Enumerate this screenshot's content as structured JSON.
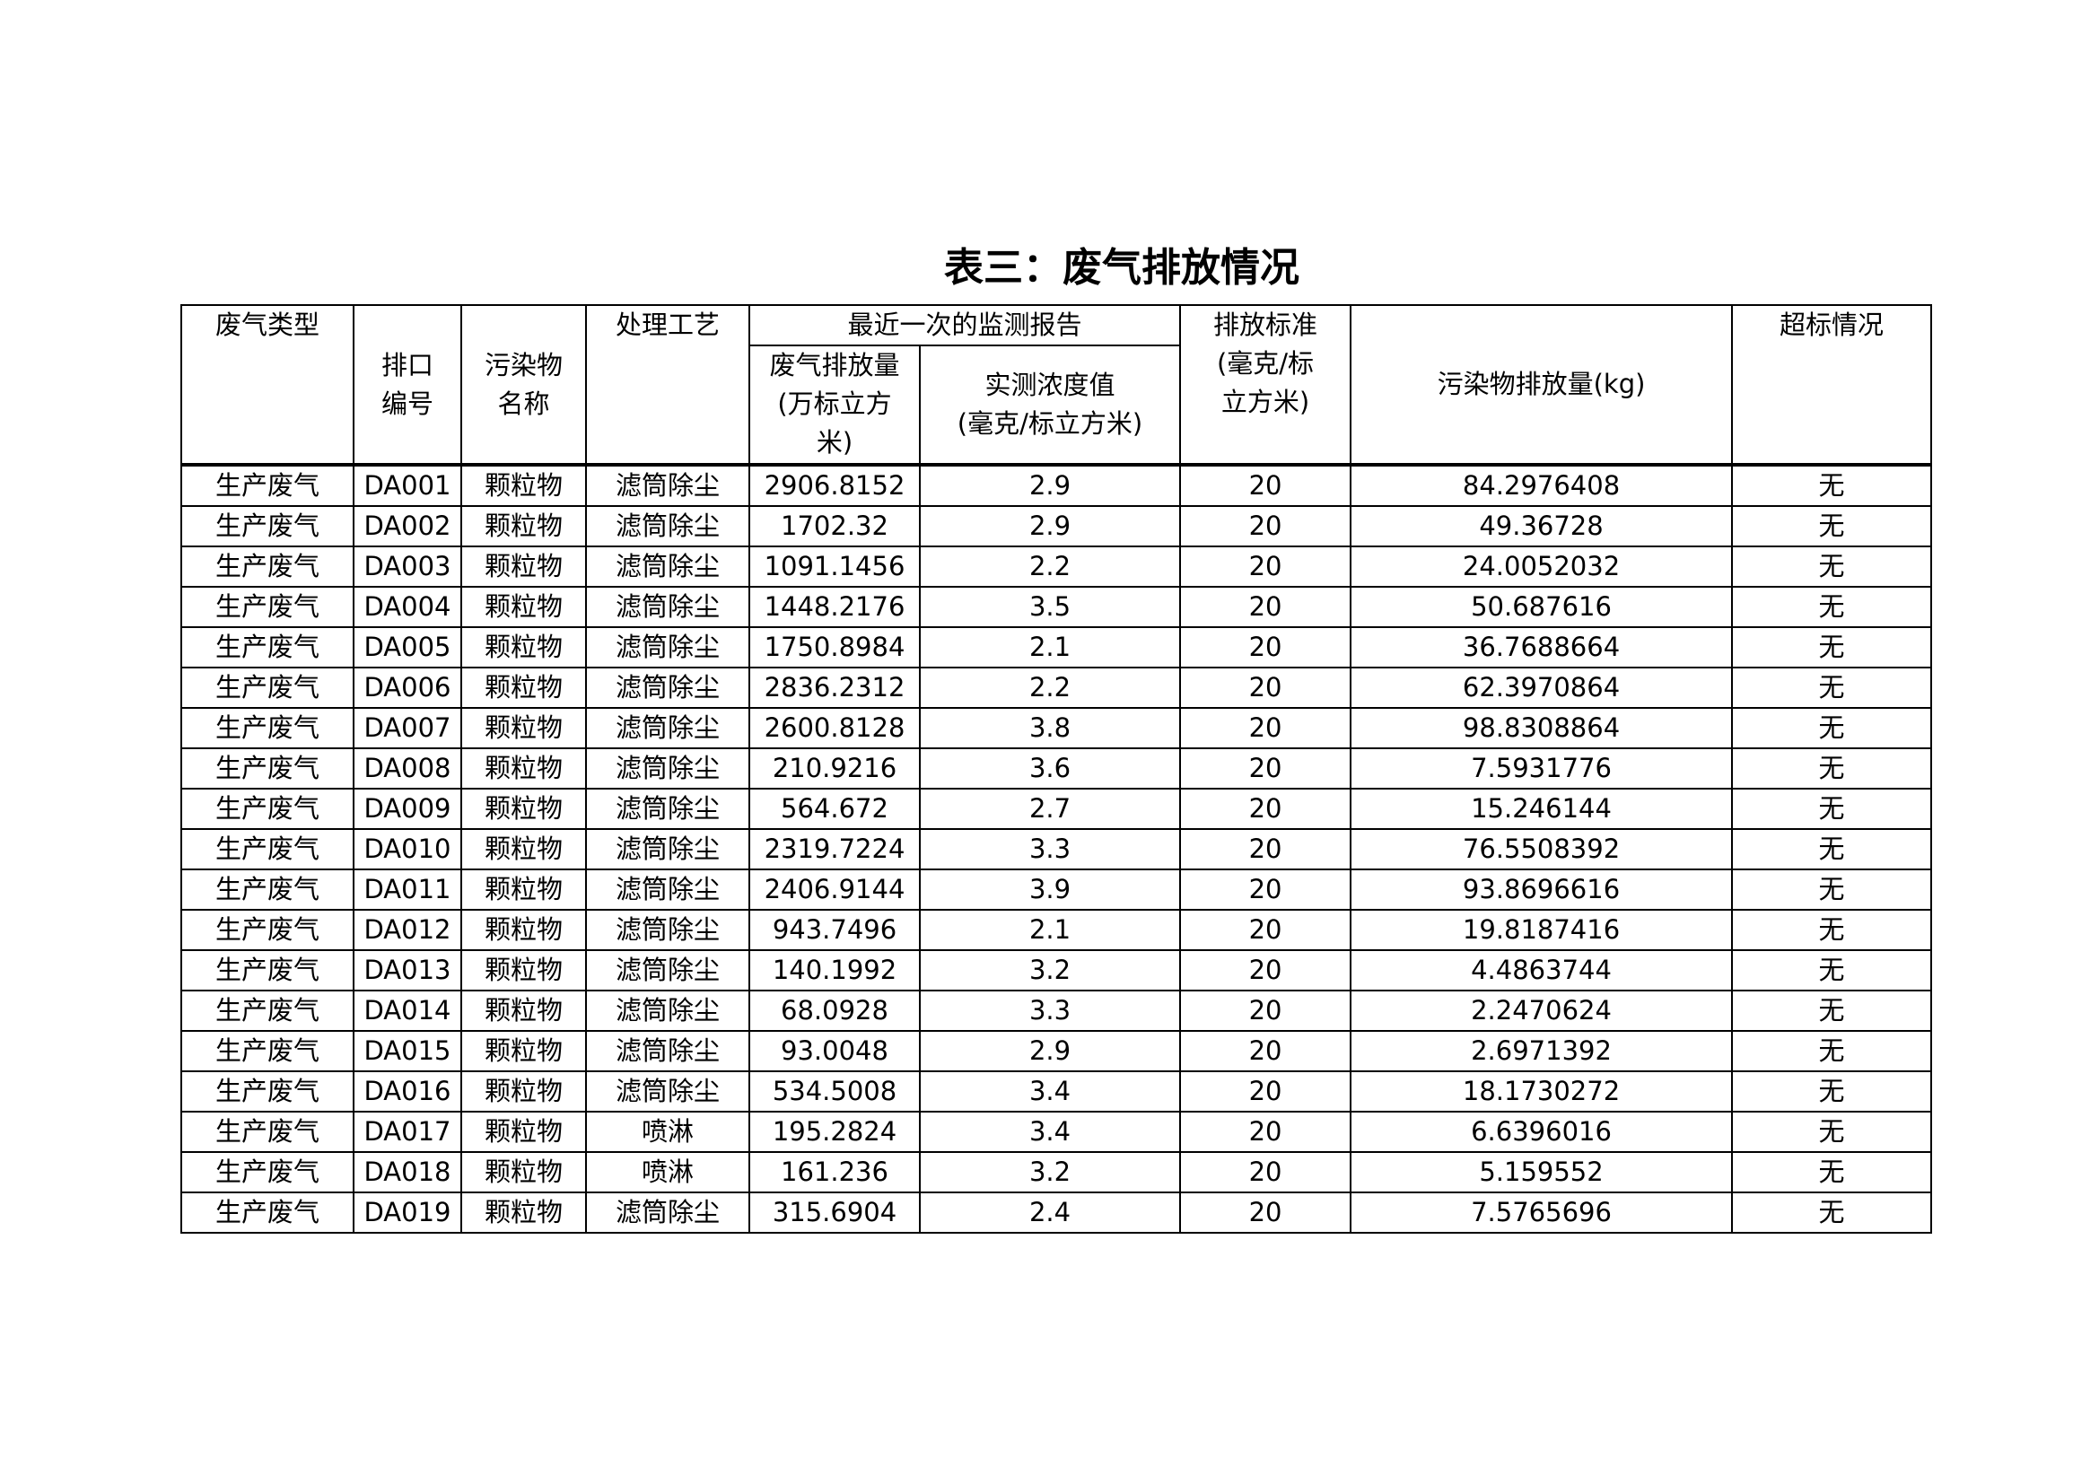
{
  "title": "表三：废气排放情况",
  "table": {
    "headers": {
      "type": "废气类型",
      "outlet_line1": "排口",
      "outlet_line2": "编号",
      "pollutant_line1": "污染物",
      "pollutant_line2": "名称",
      "process": "处理工艺",
      "report_group": "最近一次的监测报告",
      "volume_line1": "废气排放量",
      "volume_line2": "(万标立方",
      "volume_line3": "米)",
      "conc_line1": "实测浓度值",
      "conc_line2": "(毫克/标立方米)",
      "standard_line1": "排放标准",
      "standard_line2": "(毫克/标",
      "standard_line3": "立方米)",
      "emission": "污染物排放量(kg)",
      "exceed": "超标情况"
    },
    "rows": [
      [
        "生产废气",
        "DA001",
        "颗粒物",
        "滤筒除尘",
        "2906.8152",
        "2.9",
        "20",
        "84.2976408",
        "无"
      ],
      [
        "生产废气",
        "DA002",
        "颗粒物",
        "滤筒除尘",
        "1702.32",
        "2.9",
        "20",
        "49.36728",
        "无"
      ],
      [
        "生产废气",
        "DA003",
        "颗粒物",
        "滤筒除尘",
        "1091.1456",
        "2.2",
        "20",
        "24.0052032",
        "无"
      ],
      [
        "生产废气",
        "DA004",
        "颗粒物",
        "滤筒除尘",
        "1448.2176",
        "3.5",
        "20",
        "50.687616",
        "无"
      ],
      [
        "生产废气",
        "DA005",
        "颗粒物",
        "滤筒除尘",
        "1750.8984",
        "2.1",
        "20",
        "36.7688664",
        "无"
      ],
      [
        "生产废气",
        "DA006",
        "颗粒物",
        "滤筒除尘",
        "2836.2312",
        "2.2",
        "20",
        "62.3970864",
        "无"
      ],
      [
        "生产废气",
        "DA007",
        "颗粒物",
        "滤筒除尘",
        "2600.8128",
        "3.8",
        "20",
        "98.8308864",
        "无"
      ],
      [
        "生产废气",
        "DA008",
        "颗粒物",
        "滤筒除尘",
        "210.9216",
        "3.6",
        "20",
        "7.5931776",
        "无"
      ],
      [
        "生产废气",
        "DA009",
        "颗粒物",
        "滤筒除尘",
        "564.672",
        "2.7",
        "20",
        "15.246144",
        "无"
      ],
      [
        "生产废气",
        "DA010",
        "颗粒物",
        "滤筒除尘",
        "2319.7224",
        "3.3",
        "20",
        "76.5508392",
        "无"
      ],
      [
        "生产废气",
        "DA011",
        "颗粒物",
        "滤筒除尘",
        "2406.9144",
        "3.9",
        "20",
        "93.8696616",
        "无"
      ],
      [
        "生产废气",
        "DA012",
        "颗粒物",
        "滤筒除尘",
        "943.7496",
        "2.1",
        "20",
        "19.8187416",
        "无"
      ],
      [
        "生产废气",
        "DA013",
        "颗粒物",
        "滤筒除尘",
        "140.1992",
        "3.2",
        "20",
        "4.4863744",
        "无"
      ],
      [
        "生产废气",
        "DA014",
        "颗粒物",
        "滤筒除尘",
        "68.0928",
        "3.3",
        "20",
        "2.2470624",
        "无"
      ],
      [
        "生产废气",
        "DA015",
        "颗粒物",
        "滤筒除尘",
        "93.0048",
        "2.9",
        "20",
        "2.6971392",
        "无"
      ],
      [
        "生产废气",
        "DA016",
        "颗粒物",
        "滤筒除尘",
        "534.5008",
        "3.4",
        "20",
        "18.1730272",
        "无"
      ],
      [
        "生产废气",
        "DA017",
        "颗粒物",
        "喷淋",
        "195.2824",
        "3.4",
        "20",
        "6.6396016",
        "无"
      ],
      [
        "生产废气",
        "DA018",
        "颗粒物",
        "喷淋",
        "161.236",
        "3.2",
        "20",
        "5.159552",
        "无"
      ],
      [
        "生产废气",
        "DA019",
        "颗粒物",
        "滤筒除尘",
        "315.6904",
        "2.4",
        "20",
        "7.5765696",
        "无"
      ]
    ]
  }
}
